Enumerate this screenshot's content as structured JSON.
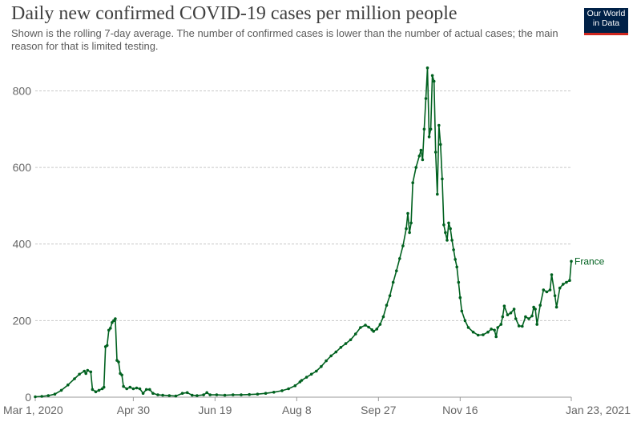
{
  "header": {
    "title": "Daily new confirmed COVID-19 cases per million people",
    "subtitle": "Shown is the rolling 7-day average. The number of confirmed cases is lower than the number of actual cases; the main reason for that is limited testing."
  },
  "logo": {
    "line1": "Our World",
    "line2": "in Data"
  },
  "colors": {
    "series": "#00611f",
    "grid": "#c8c8c8",
    "axis": "#666666"
  },
  "chart_data": {
    "type": "line",
    "title": "Daily new confirmed COVID-19 cases per million people",
    "xlabel": "",
    "ylabel": "",
    "ylim": [
      0,
      870
    ],
    "xlim": [
      "2020-03-01",
      "2021-01-23"
    ],
    "yticks": [
      0,
      200,
      400,
      600,
      800
    ],
    "xtick_labels": [
      "Mar 1, 2020",
      "Apr 30",
      "Jun 19",
      "Aug 8",
      "Sep 27",
      "Nov 16",
      "Jan 23, 2021"
    ],
    "xtick_dates": [
      "2020-03-01",
      "2020-04-30",
      "2020-06-19",
      "2020-08-08",
      "2020-09-27",
      "2020-11-16",
      "2021-01-23"
    ],
    "grid": "horizontal dashed",
    "series": [
      {
        "name": "France",
        "points": [
          [
            "2020-03-01",
            1
          ],
          [
            "2020-03-05",
            2
          ],
          [
            "2020-03-09",
            4
          ],
          [
            "2020-03-13",
            8
          ],
          [
            "2020-03-17",
            18
          ],
          [
            "2020-03-21",
            32
          ],
          [
            "2020-03-25",
            48
          ],
          [
            "2020-03-28",
            60
          ],
          [
            "2020-03-31",
            68
          ],
          [
            "2020-04-01",
            62
          ],
          [
            "2020-04-02",
            70
          ],
          [
            "2020-04-04",
            66
          ],
          [
            "2020-04-05",
            20
          ],
          [
            "2020-04-07",
            14
          ],
          [
            "2020-04-09",
            18
          ],
          [
            "2020-04-11",
            22
          ],
          [
            "2020-04-12",
            26
          ],
          [
            "2020-04-13",
            132
          ],
          [
            "2020-04-14",
            135
          ],
          [
            "2020-04-15",
            175
          ],
          [
            "2020-04-16",
            180
          ],
          [
            "2020-04-17",
            195
          ],
          [
            "2020-04-18",
            200
          ],
          [
            "2020-04-19",
            205
          ],
          [
            "2020-04-20",
            96
          ],
          [
            "2020-04-21",
            92
          ],
          [
            "2020-04-22",
            62
          ],
          [
            "2020-04-23",
            58
          ],
          [
            "2020-04-24",
            28
          ],
          [
            "2020-04-26",
            22
          ],
          [
            "2020-04-28",
            26
          ],
          [
            "2020-04-30",
            22
          ],
          [
            "2020-05-02",
            24
          ],
          [
            "2020-05-04",
            22
          ],
          [
            "2020-05-06",
            10
          ],
          [
            "2020-05-08",
            20
          ],
          [
            "2020-05-10",
            20
          ],
          [
            "2020-05-12",
            10
          ],
          [
            "2020-05-15",
            6
          ],
          [
            "2020-05-18",
            5
          ],
          [
            "2020-05-22",
            4
          ],
          [
            "2020-05-26",
            3
          ],
          [
            "2020-05-30",
            10
          ],
          [
            "2020-06-02",
            12
          ],
          [
            "2020-06-05",
            5
          ],
          [
            "2020-06-08",
            4
          ],
          [
            "2020-06-12",
            6
          ],
          [
            "2020-06-14",
            12
          ],
          [
            "2020-06-16",
            6
          ],
          [
            "2020-06-20",
            6
          ],
          [
            "2020-06-25",
            5
          ],
          [
            "2020-06-30",
            6
          ],
          [
            "2020-07-05",
            6
          ],
          [
            "2020-07-10",
            7
          ],
          [
            "2020-07-15",
            8
          ],
          [
            "2020-07-20",
            10
          ],
          [
            "2020-07-25",
            13
          ],
          [
            "2020-07-30",
            17
          ],
          [
            "2020-08-03",
            22
          ],
          [
            "2020-08-07",
            30
          ],
          [
            "2020-08-10",
            40
          ],
          [
            "2020-08-11",
            44
          ],
          [
            "2020-08-14",
            52
          ],
          [
            "2020-08-17",
            60
          ],
          [
            "2020-08-20",
            68
          ],
          [
            "2020-08-23",
            80
          ],
          [
            "2020-08-26",
            95
          ],
          [
            "2020-08-29",
            108
          ],
          [
            "2020-09-01",
            118
          ],
          [
            "2020-09-04",
            130
          ],
          [
            "2020-09-07",
            140
          ],
          [
            "2020-09-10",
            150
          ],
          [
            "2020-09-13",
            165
          ],
          [
            "2020-09-16",
            182
          ],
          [
            "2020-09-19",
            188
          ],
          [
            "2020-09-21",
            183
          ],
          [
            "2020-09-23",
            176
          ],
          [
            "2020-09-24",
            172
          ],
          [
            "2020-09-26",
            178
          ],
          [
            "2020-09-28",
            190
          ],
          [
            "2020-09-30",
            210
          ],
          [
            "2020-10-02",
            240
          ],
          [
            "2020-10-04",
            265
          ],
          [
            "2020-10-06",
            300
          ],
          [
            "2020-10-08",
            330
          ],
          [
            "2020-10-10",
            362
          ],
          [
            "2020-10-12",
            395
          ],
          [
            "2020-10-14",
            440
          ],
          [
            "2020-10-15",
            480
          ],
          [
            "2020-10-16",
            430
          ],
          [
            "2020-10-17",
            455
          ],
          [
            "2020-10-18",
            560
          ],
          [
            "2020-10-20",
            600
          ],
          [
            "2020-10-22",
            630
          ],
          [
            "2020-10-23",
            645
          ],
          [
            "2020-10-24",
            620
          ],
          [
            "2020-10-25",
            700
          ],
          [
            "2020-10-26",
            780
          ],
          [
            "2020-10-27",
            860
          ],
          [
            "2020-10-28",
            680
          ],
          [
            "2020-10-29",
            700
          ],
          [
            "2020-10-30",
            840
          ],
          [
            "2020-10-31",
            825
          ],
          [
            "2020-11-01",
            640
          ],
          [
            "2020-11-02",
            530
          ],
          [
            "2020-11-03",
            710
          ],
          [
            "2020-11-04",
            660
          ],
          [
            "2020-11-05",
            570
          ],
          [
            "2020-11-06",
            450
          ],
          [
            "2020-11-07",
            430
          ],
          [
            "2020-11-08",
            410
          ],
          [
            "2020-11-09",
            455
          ],
          [
            "2020-11-10",
            440
          ],
          [
            "2020-11-11",
            410
          ],
          [
            "2020-11-12",
            385
          ],
          [
            "2020-11-13",
            360
          ],
          [
            "2020-11-14",
            340
          ],
          [
            "2020-11-15",
            300
          ],
          [
            "2020-11-16",
            260
          ],
          [
            "2020-11-17",
            225
          ],
          [
            "2020-11-19",
            200
          ],
          [
            "2020-11-21",
            182
          ],
          [
            "2020-11-24",
            170
          ],
          [
            "2020-11-27",
            162
          ],
          [
            "2020-11-30",
            163
          ],
          [
            "2020-12-03",
            170
          ],
          [
            "2020-12-05",
            178
          ],
          [
            "2020-12-07",
            175
          ],
          [
            "2020-12-08",
            158
          ],
          [
            "2020-12-09",
            182
          ],
          [
            "2020-12-11",
            190
          ],
          [
            "2020-12-12",
            210
          ],
          [
            "2020-12-13",
            238
          ],
          [
            "2020-12-15",
            215
          ],
          [
            "2020-12-17",
            220
          ],
          [
            "2020-12-19",
            230
          ],
          [
            "2020-12-20",
            205
          ],
          [
            "2020-12-22",
            186
          ],
          [
            "2020-12-24",
            185
          ],
          [
            "2020-12-26",
            210
          ],
          [
            "2020-12-28",
            205
          ],
          [
            "2020-12-30",
            212
          ],
          [
            "2020-12-31",
            235
          ],
          [
            "2021-01-01",
            230
          ],
          [
            "2021-01-02",
            190
          ],
          [
            "2021-01-04",
            240
          ],
          [
            "2021-01-06",
            280
          ],
          [
            "2021-01-08",
            275
          ],
          [
            "2021-01-10",
            280
          ],
          [
            "2021-01-11",
            320
          ],
          [
            "2021-01-13",
            265
          ],
          [
            "2021-01-14",
            235
          ],
          [
            "2021-01-16",
            285
          ],
          [
            "2021-01-18",
            295
          ],
          [
            "2021-01-20",
            300
          ],
          [
            "2021-01-22",
            305
          ],
          [
            "2021-01-23",
            355
          ]
        ]
      }
    ]
  }
}
